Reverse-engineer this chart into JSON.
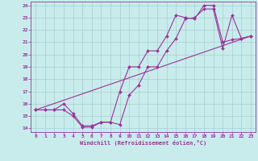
{
  "title": "",
  "xlabel": "Windchill (Refroidissement éolien,°C)",
  "bg_color": "#c8ecec",
  "line_color": "#993399",
  "grid_color": "#aacccc",
  "xlim_min": -0.5,
  "xlim_max": 23.5,
  "ylim_min": 13.7,
  "ylim_max": 24.3,
  "xticks": [
    0,
    1,
    2,
    3,
    4,
    5,
    6,
    7,
    8,
    9,
    10,
    11,
    12,
    13,
    14,
    15,
    16,
    17,
    18,
    19,
    20,
    21,
    22,
    23
  ],
  "yticks": [
    14,
    15,
    16,
    17,
    18,
    19,
    20,
    21,
    22,
    23,
    24
  ],
  "line1_x": [
    0,
    1,
    2,
    3,
    4,
    5,
    6,
    7,
    8,
    9,
    10,
    11,
    12,
    13,
    14,
    15,
    16,
    17,
    18,
    19,
    20,
    21,
    22,
    23
  ],
  "line1_y": [
    15.5,
    15.5,
    15.5,
    15.5,
    15.0,
    14.1,
    14.1,
    14.5,
    14.5,
    14.3,
    16.7,
    17.5,
    19.0,
    19.0,
    20.3,
    21.3,
    22.9,
    23.0,
    23.7,
    23.7,
    20.5,
    23.2,
    21.3,
    21.5
  ],
  "line2_x": [
    0,
    1,
    2,
    3,
    4,
    5,
    6,
    7,
    8,
    9,
    10,
    11,
    12,
    13,
    14,
    15,
    16,
    17,
    18,
    19,
    20,
    21,
    22,
    23
  ],
  "line2_y": [
    15.5,
    15.5,
    15.5,
    16.0,
    15.2,
    14.2,
    14.2,
    14.5,
    14.5,
    17.0,
    19.0,
    19.0,
    20.3,
    20.3,
    21.5,
    23.2,
    23.0,
    22.9,
    24.0,
    24.0,
    21.0,
    21.2,
    21.3,
    21.5
  ],
  "line3_x": [
    0,
    23
  ],
  "line3_y": [
    15.5,
    21.5
  ],
  "marker_size": 2.0,
  "line_width": 0.8,
  "tick_fontsize": 4.5,
  "xlabel_fontsize": 5.0
}
